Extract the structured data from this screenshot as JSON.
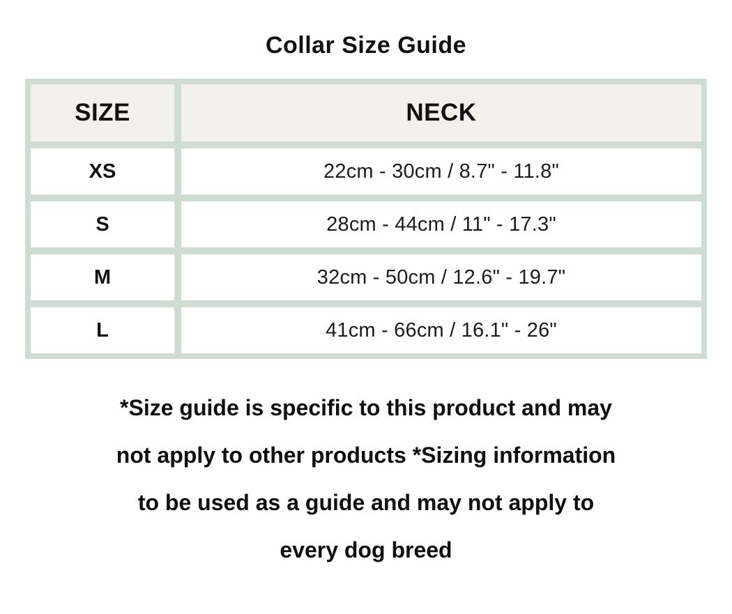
{
  "title": "Collar Size Guide",
  "table": {
    "headers": {
      "size": "SIZE",
      "neck": "NECK"
    },
    "rows": [
      {
        "size": "XS",
        "neck": "22cm - 30cm / 8.7\" - 11.8\""
      },
      {
        "size": "S",
        "neck": "28cm - 44cm / 11\" - 17.3\""
      },
      {
        "size": "M",
        "neck": "32cm - 50cm / 12.6\" - 19.7\""
      },
      {
        "size": "L",
        "neck": "41cm - 66cm / 16.1\" - 26\""
      }
    ]
  },
  "footnote": {
    "lines": [
      "*Size guide is specific to this product and may",
      "not apply to other products *Sizing information",
      "to be used as a guide and may not apply to",
      "every dog breed"
    ]
  },
  "colors": {
    "background": "#ffffff",
    "table_grid": "#cfdcd4",
    "header_cell_bg": "#f3f1eb",
    "data_cell_bg": "#ffffff",
    "text": "#111111"
  }
}
